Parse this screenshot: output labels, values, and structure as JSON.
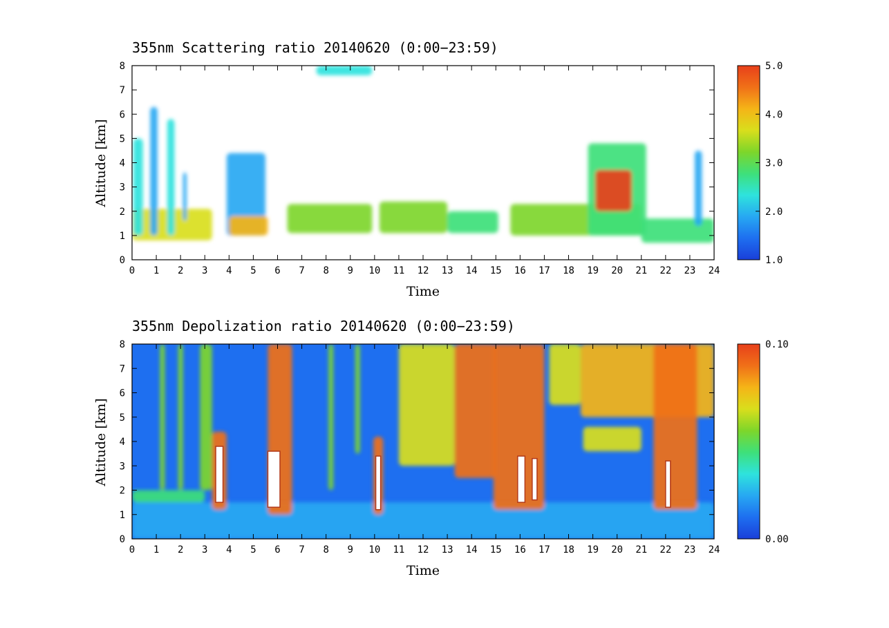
{
  "colors": {
    "scale": [
      "#1a3fd9",
      "#1e6ff0",
      "#27a8f2",
      "#2ee3dd",
      "#3ee07a",
      "#7ed62a",
      "#d9de1c",
      "#f5b417",
      "#f07018",
      "#e8401a"
    ],
    "cloud_core": "#ffffff",
    "contour": "#b23a1a"
  },
  "chart_data": [
    {
      "type": "heatmap",
      "title": "355nm Scattering ratio  20140620 (0:00−23:59)",
      "xlabel": "Time",
      "ylabel": "Altitude [km]",
      "xlim": [
        0,
        24
      ],
      "ylim": [
        0,
        8
      ],
      "x_ticks": [
        "0",
        "1",
        "2",
        "3",
        "4",
        "5",
        "6",
        "7",
        "8",
        "9",
        "10",
        "11",
        "12",
        "13",
        "14",
        "15",
        "16",
        "17",
        "18",
        "19",
        "20",
        "21",
        "22",
        "23",
        "24"
      ],
      "y_ticks": [
        "0",
        "1",
        "2",
        "3",
        "4",
        "5",
        "6",
        "7",
        "8"
      ],
      "colorbar": {
        "min": 1.0,
        "max": 5.0,
        "labels": [
          "5.0",
          "4.0",
          "3.0",
          "2.0",
          "1.0"
        ]
      },
      "background": "none",
      "features": [
        {
          "x0": 0.0,
          "x1": 3.3,
          "y0": 0.8,
          "y1": 2.1,
          "value": 3.6
        },
        {
          "x0": 0.05,
          "x1": 0.45,
          "y0": 1.0,
          "y1": 5.0,
          "value": 2.2
        },
        {
          "x0": 0.75,
          "x1": 1.05,
          "y0": 1.0,
          "y1": 6.3,
          "value": 2.0
        },
        {
          "x0": 1.45,
          "x1": 1.75,
          "y0": 1.0,
          "y1": 5.8,
          "value": 2.2
        },
        {
          "x0": 2.1,
          "x1": 2.25,
          "y0": 1.6,
          "y1": 3.6,
          "value": 1.8
        },
        {
          "x0": 3.9,
          "x1": 5.5,
          "y0": 1.0,
          "y1": 4.4,
          "value": 1.9
        },
        {
          "x0": 4.0,
          "x1": 5.6,
          "y0": 1.0,
          "y1": 1.8,
          "value": 4.0
        },
        {
          "x0": 6.4,
          "x1": 9.9,
          "y0": 1.1,
          "y1": 2.3,
          "value": 3.4
        },
        {
          "x0": 10.2,
          "x1": 13.0,
          "y0": 1.1,
          "y1": 2.4,
          "value": 3.2
        },
        {
          "x0": 13.0,
          "x1": 15.1,
          "y0": 1.1,
          "y1": 2.0,
          "value": 2.8
        },
        {
          "x0": 15.6,
          "x1": 21.0,
          "y0": 1.0,
          "y1": 2.3,
          "value": 3.0
        },
        {
          "x0": 18.8,
          "x1": 21.2,
          "y0": 1.0,
          "y1": 4.8,
          "value": 2.9
        },
        {
          "x0": 19.1,
          "x1": 20.6,
          "y0": 2.0,
          "y1": 3.7,
          "value": 5.0
        },
        {
          "x0": 21.0,
          "x1": 24.0,
          "y0": 0.7,
          "y1": 1.7,
          "value": 2.6
        },
        {
          "x0": 23.2,
          "x1": 23.5,
          "y0": 1.4,
          "y1": 4.5,
          "value": 2.0
        },
        {
          "x0": 7.6,
          "x1": 9.9,
          "y0": 7.6,
          "y1": 8.0,
          "value": 2.3
        }
      ]
    },
    {
      "type": "heatmap",
      "title": "355nm Depolization ratio  20140620 (0:00−23:59)",
      "xlabel": "Time",
      "ylabel": "Altitude [km]",
      "xlim": [
        0,
        24
      ],
      "ylim": [
        0,
        8
      ],
      "x_ticks": [
        "0",
        "1",
        "2",
        "3",
        "4",
        "5",
        "6",
        "7",
        "8",
        "9",
        "10",
        "11",
        "12",
        "13",
        "14",
        "15",
        "16",
        "17",
        "18",
        "19",
        "20",
        "21",
        "22",
        "23",
        "24"
      ],
      "y_ticks": [
        "0",
        "1",
        "2",
        "3",
        "4",
        "5",
        "6",
        "7",
        "8"
      ],
      "colorbar": {
        "min": 0.0,
        "max": 0.1,
        "labels": [
          "0.10",
          "0.00"
        ]
      },
      "background": 0.015,
      "features": [
        {
          "x0": 0.0,
          "x1": 24.0,
          "y0": 0.0,
          "y1": 1.5,
          "value": 0.025
        },
        {
          "x0": 1.15,
          "x1": 1.35,
          "y0": 2.0,
          "y1": 8.0,
          "value": 0.06
        },
        {
          "x0": 1.9,
          "x1": 2.1,
          "y0": 2.0,
          "y1": 8.0,
          "value": 0.06
        },
        {
          "x0": 2.8,
          "x1": 3.3,
          "y0": 2.0,
          "y1": 8.0,
          "value": 0.05
        },
        {
          "x0": 3.3,
          "x1": 3.9,
          "y0": 1.2,
          "y1": 4.4,
          "value": 0.09
        },
        {
          "x0": 5.6,
          "x1": 6.6,
          "y0": 1.0,
          "y1": 8.0,
          "value": 0.085
        },
        {
          "x0": 8.1,
          "x1": 8.3,
          "y0": 2.0,
          "y1": 8.0,
          "value": 0.06
        },
        {
          "x0": 9.2,
          "x1": 9.4,
          "y0": 3.5,
          "y1": 8.0,
          "value": 0.06
        },
        {
          "x0": 9.95,
          "x1": 10.35,
          "y0": 1.0,
          "y1": 4.2,
          "value": 0.085
        },
        {
          "x0": 11.0,
          "x1": 13.3,
          "y0": 3.0,
          "y1": 8.0,
          "value": 0.07
        },
        {
          "x0": 13.3,
          "x1": 15.0,
          "y0": 2.5,
          "y1": 8.0,
          "value": 0.09
        },
        {
          "x0": 14.9,
          "x1": 17.0,
          "y0": 1.2,
          "y1": 8.0,
          "value": 0.09
        },
        {
          "x0": 17.2,
          "x1": 18.5,
          "y0": 5.5,
          "y1": 8.0,
          "value": 0.07
        },
        {
          "x0": 18.5,
          "x1": 24.0,
          "y0": 5.0,
          "y1": 8.0,
          "value": 0.08
        },
        {
          "x0": 18.6,
          "x1": 21.0,
          "y0": 3.6,
          "y1": 4.6,
          "value": 0.07
        },
        {
          "x0": 21.5,
          "x1": 23.3,
          "y0": 1.2,
          "y1": 8.0,
          "value": 0.085
        },
        {
          "x0": 0.0,
          "x1": 3.0,
          "y0": 1.5,
          "y1": 2.0,
          "value": 0.045
        }
      ],
      "white_regions": [
        {
          "x0": 3.45,
          "x1": 3.75,
          "y0": 1.5,
          "y1": 3.8
        },
        {
          "x0": 5.6,
          "x1": 6.1,
          "y0": 1.3,
          "y1": 3.6
        },
        {
          "x0": 10.05,
          "x1": 10.25,
          "y0": 1.2,
          "y1": 3.4
        },
        {
          "x0": 15.9,
          "x1": 16.2,
          "y0": 1.5,
          "y1": 3.4
        },
        {
          "x0": 16.5,
          "x1": 16.7,
          "y0": 1.6,
          "y1": 3.3
        },
        {
          "x0": 22.0,
          "x1": 22.2,
          "y0": 1.3,
          "y1": 3.2
        }
      ]
    }
  ]
}
